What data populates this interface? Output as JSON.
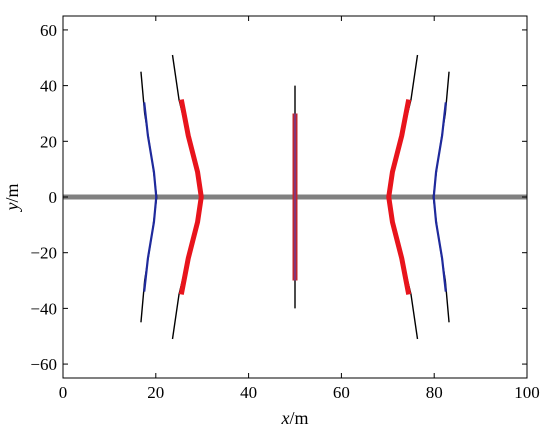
{
  "chart_data": {
    "type": "line",
    "title": "",
    "xlabel": "x/m",
    "ylabel": "y/m",
    "xlabel_parts": {
      "var": "x",
      "unit": "/m"
    },
    "ylabel_parts": {
      "var": "y",
      "unit": "/m"
    },
    "xlim": [
      0,
      100
    ],
    "ylim": [
      -65,
      65
    ],
    "xticks": [
      0,
      20,
      40,
      60,
      80,
      100
    ],
    "yticks": [
      -60,
      -40,
      -20,
      0,
      20,
      40,
      60
    ],
    "xtick_labels": [
      "0",
      "20",
      "40",
      "60",
      "80",
      "100"
    ],
    "ytick_labels": [
      "−60",
      "−40",
      "−20",
      "0",
      "20",
      "40",
      "60"
    ],
    "grid": false,
    "legend": "none",
    "series": [
      {
        "color": "#808080",
        "width": "thick",
        "x": [
          0,
          100
        ],
        "y": [
          0,
          0
        ]
      },
      {
        "color": "#000000",
        "width": "thin",
        "x": [
          50,
          50
        ],
        "y": [
          -40,
          40
        ]
      },
      {
        "color": "#c0272d",
        "width": "thick",
        "x": [
          50,
          50
        ],
        "y": [
          -30,
          30
        ]
      },
      {
        "color": "#6a3d9a",
        "width": "thin",
        "x": [
          50,
          50
        ],
        "y": [
          -30,
          30
        ]
      },
      {
        "color": "#000000",
        "width": "thin",
        "x": [
          16.8,
          17.6,
          19.3,
          20.2,
          19.3,
          17.6,
          16.8
        ],
        "y": [
          -45,
          -30,
          -12,
          0,
          12,
          30,
          45
        ]
      },
      {
        "color": "#1f2a9c",
        "width": "medium",
        "x": [
          17.5,
          18.3,
          19.6,
          20.1,
          19.6,
          18.3,
          17.5
        ],
        "y": [
          -34,
          -22,
          -9,
          0,
          9,
          22,
          34
        ]
      },
      {
        "color": "#000000",
        "width": "thin",
        "x": [
          23.6,
          25.0,
          27.9,
          30.0,
          27.9,
          25.0,
          23.6
        ],
        "y": [
          -51,
          -35,
          -15,
          0,
          15,
          35,
          51
        ]
      },
      {
        "color": "#e8141c",
        "width": "thick",
        "x": [
          25.5,
          27.0,
          29.0,
          29.8,
          29.0,
          27.0,
          25.5
        ],
        "y": [
          -35,
          -22,
          -9,
          0,
          9,
          22,
          35
        ]
      },
      {
        "color": "#000000",
        "width": "thin",
        "x": [
          83.2,
          82.4,
          80.7,
          79.8,
          80.7,
          82.4,
          83.2
        ],
        "y": [
          -45,
          -30,
          -12,
          0,
          12,
          30,
          45
        ]
      },
      {
        "color": "#1f2a9c",
        "width": "medium",
        "x": [
          82.5,
          81.7,
          80.4,
          79.9,
          80.4,
          81.7,
          82.5
        ],
        "y": [
          -34,
          -22,
          -9,
          0,
          9,
          22,
          34
        ]
      },
      {
        "color": "#000000",
        "width": "thin",
        "x": [
          76.4,
          75.0,
          72.1,
          70.0,
          72.1,
          75.0,
          76.4
        ],
        "y": [
          -51,
          -35,
          -15,
          0,
          15,
          35,
          51
        ]
      },
      {
        "color": "#e8141c",
        "width": "thick",
        "x": [
          74.5,
          73.0,
          71.0,
          70.2,
          71.0,
          73.0,
          74.5
        ],
        "y": [
          -35,
          -22,
          -9,
          0,
          9,
          22,
          35
        ]
      }
    ]
  }
}
